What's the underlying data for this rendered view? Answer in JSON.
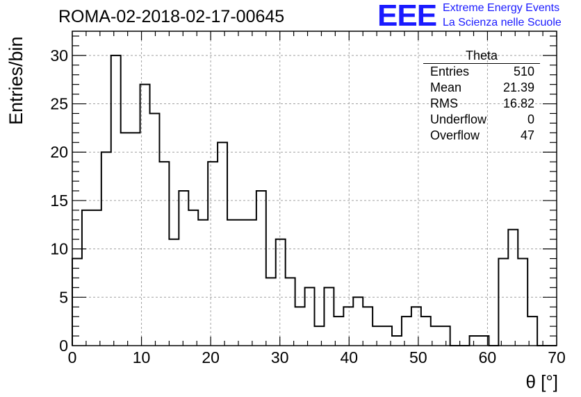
{
  "logo": {
    "mark": "EEE",
    "line1": "Extreme Energy Events",
    "line2": "La Scienza nelle Scuole",
    "color": "#1a1aff"
  },
  "stats_box": {
    "title": "Theta",
    "rows": [
      {
        "key": "Entries",
        "value": "510"
      },
      {
        "key": "Mean",
        "value": "21.39"
      },
      {
        "key": "RMS",
        "value": "16.82"
      },
      {
        "key": "Underflow",
        "value": "0"
      },
      {
        "key": "Overflow",
        "value": "47"
      }
    ]
  },
  "chart_data": {
    "type": "bar",
    "title": "ROMA-02-2018-02-17-00645",
    "xlabel": "θ [°]",
    "ylabel": "Entries/bin",
    "xlim": [
      0,
      70
    ],
    "ylim": [
      0,
      32.5
    ],
    "xticks": [
      0,
      10,
      20,
      30,
      40,
      50,
      60,
      70
    ],
    "yticks": [
      0,
      5,
      10,
      15,
      20,
      25,
      30
    ],
    "grid": true,
    "histogram": true,
    "bin_edges": [
      0,
      1.4,
      2.8,
      4.2,
      5.6,
      7,
      8.4,
      9.8,
      11.2,
      12.6,
      14,
      15.4,
      16.8,
      18.2,
      19.6,
      21,
      22.4,
      23.8,
      25.2,
      26.6,
      28,
      29.4,
      30.8,
      32.2,
      33.6,
      35,
      36.4,
      37.8,
      39.2,
      40.6,
      42,
      43.4,
      44.8,
      46.2,
      47.6,
      49,
      50.4,
      51.8,
      53.2,
      54.6,
      56,
      57.4,
      58.8,
      60.2,
      61.6,
      63,
      64.4,
      65.8,
      67.2,
      68.6,
      70
    ],
    "values": [
      9,
      14,
      14,
      20,
      30,
      22,
      22,
      27,
      24,
      19,
      11,
      16,
      14,
      13,
      19,
      21,
      13,
      13,
      13,
      16,
      7,
      11,
      7,
      4,
      6,
      2,
      6,
      3,
      4,
      5,
      4,
      2,
      2,
      1,
      3,
      4,
      3,
      2,
      2,
      0,
      0,
      1,
      1,
      0,
      9,
      12,
      9,
      3,
      0,
      0
    ],
    "color": "#000000"
  }
}
